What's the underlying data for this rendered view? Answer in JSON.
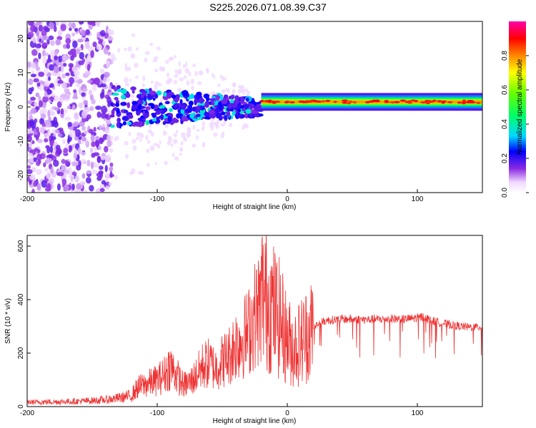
{
  "title": "S225.2026.071.08.39.C37",
  "chart_data": [
    {
      "type": "heatmap",
      "xlabel": "Height of straight line (km)",
      "ylabel": "Frequency (Hz)",
      "xlim": [
        -200,
        150
      ],
      "ylim": [
        -25,
        25
      ],
      "xticks": [
        -200,
        -100,
        0,
        100
      ],
      "yticks": [
        -20,
        -10,
        0,
        10,
        20
      ],
      "colorbar": {
        "label": "Normalized spectral amplitude",
        "range": [
          0,
          1
        ],
        "ticks": [
          0.0,
          0.2,
          0.4,
          0.6,
          0.8
        ],
        "tick_labels": [
          "0.0",
          "0.2",
          "0.4",
          "0.6",
          "0.8"
        ]
      },
      "regions": [
        {
          "x": [
            -200,
            -135
          ],
          "freq_spread": 25,
          "amplitude": 0.1
        },
        {
          "x": [
            -135,
            -20
          ],
          "freq_center": 0,
          "freq_spread": 6,
          "amplitude": 0.25
        },
        {
          "x": [
            -20,
            150
          ],
          "freq_center": 1.5,
          "freq_spread": 1,
          "amplitude": 0.85
        }
      ]
    },
    {
      "type": "line",
      "xlabel": "Height of straight line (km)",
      "ylabel": "SNR (10 * v/v)",
      "xlim": [
        -200,
        150
      ],
      "ylim": [
        0,
        640
      ],
      "xticks": [
        -200,
        -100,
        0,
        100
      ],
      "yticks": [
        0,
        200,
        400,
        600
      ],
      "series": [
        {
          "color": "#ee3333",
          "x": [
            -200,
            -180,
            -160,
            -140,
            -130,
            -120,
            -115,
            -110,
            -100,
            -95,
            -90,
            -85,
            -80,
            -75,
            -70,
            -65,
            -60,
            -55,
            -50,
            -45,
            -40,
            -35,
            -30,
            -25,
            -20,
            -15,
            -10,
            -5,
            0,
            5,
            10,
            15,
            20,
            25,
            30,
            40,
            50,
            60,
            70,
            80,
            90,
            100,
            105,
            110,
            120,
            130,
            140,
            150
          ],
          "y": [
            18,
            20,
            22,
            28,
            35,
            45,
            80,
            90,
            110,
            130,
            170,
            130,
            90,
            100,
            130,
            170,
            180,
            160,
            190,
            210,
            260,
            280,
            310,
            380,
            420,
            400,
            360,
            320,
            250,
            220,
            240,
            270,
            300,
            315,
            325,
            330,
            330,
            328,
            330,
            332,
            330,
            335,
            340,
            325,
            315,
            305,
            300,
            300
          ]
        }
      ]
    }
  ]
}
